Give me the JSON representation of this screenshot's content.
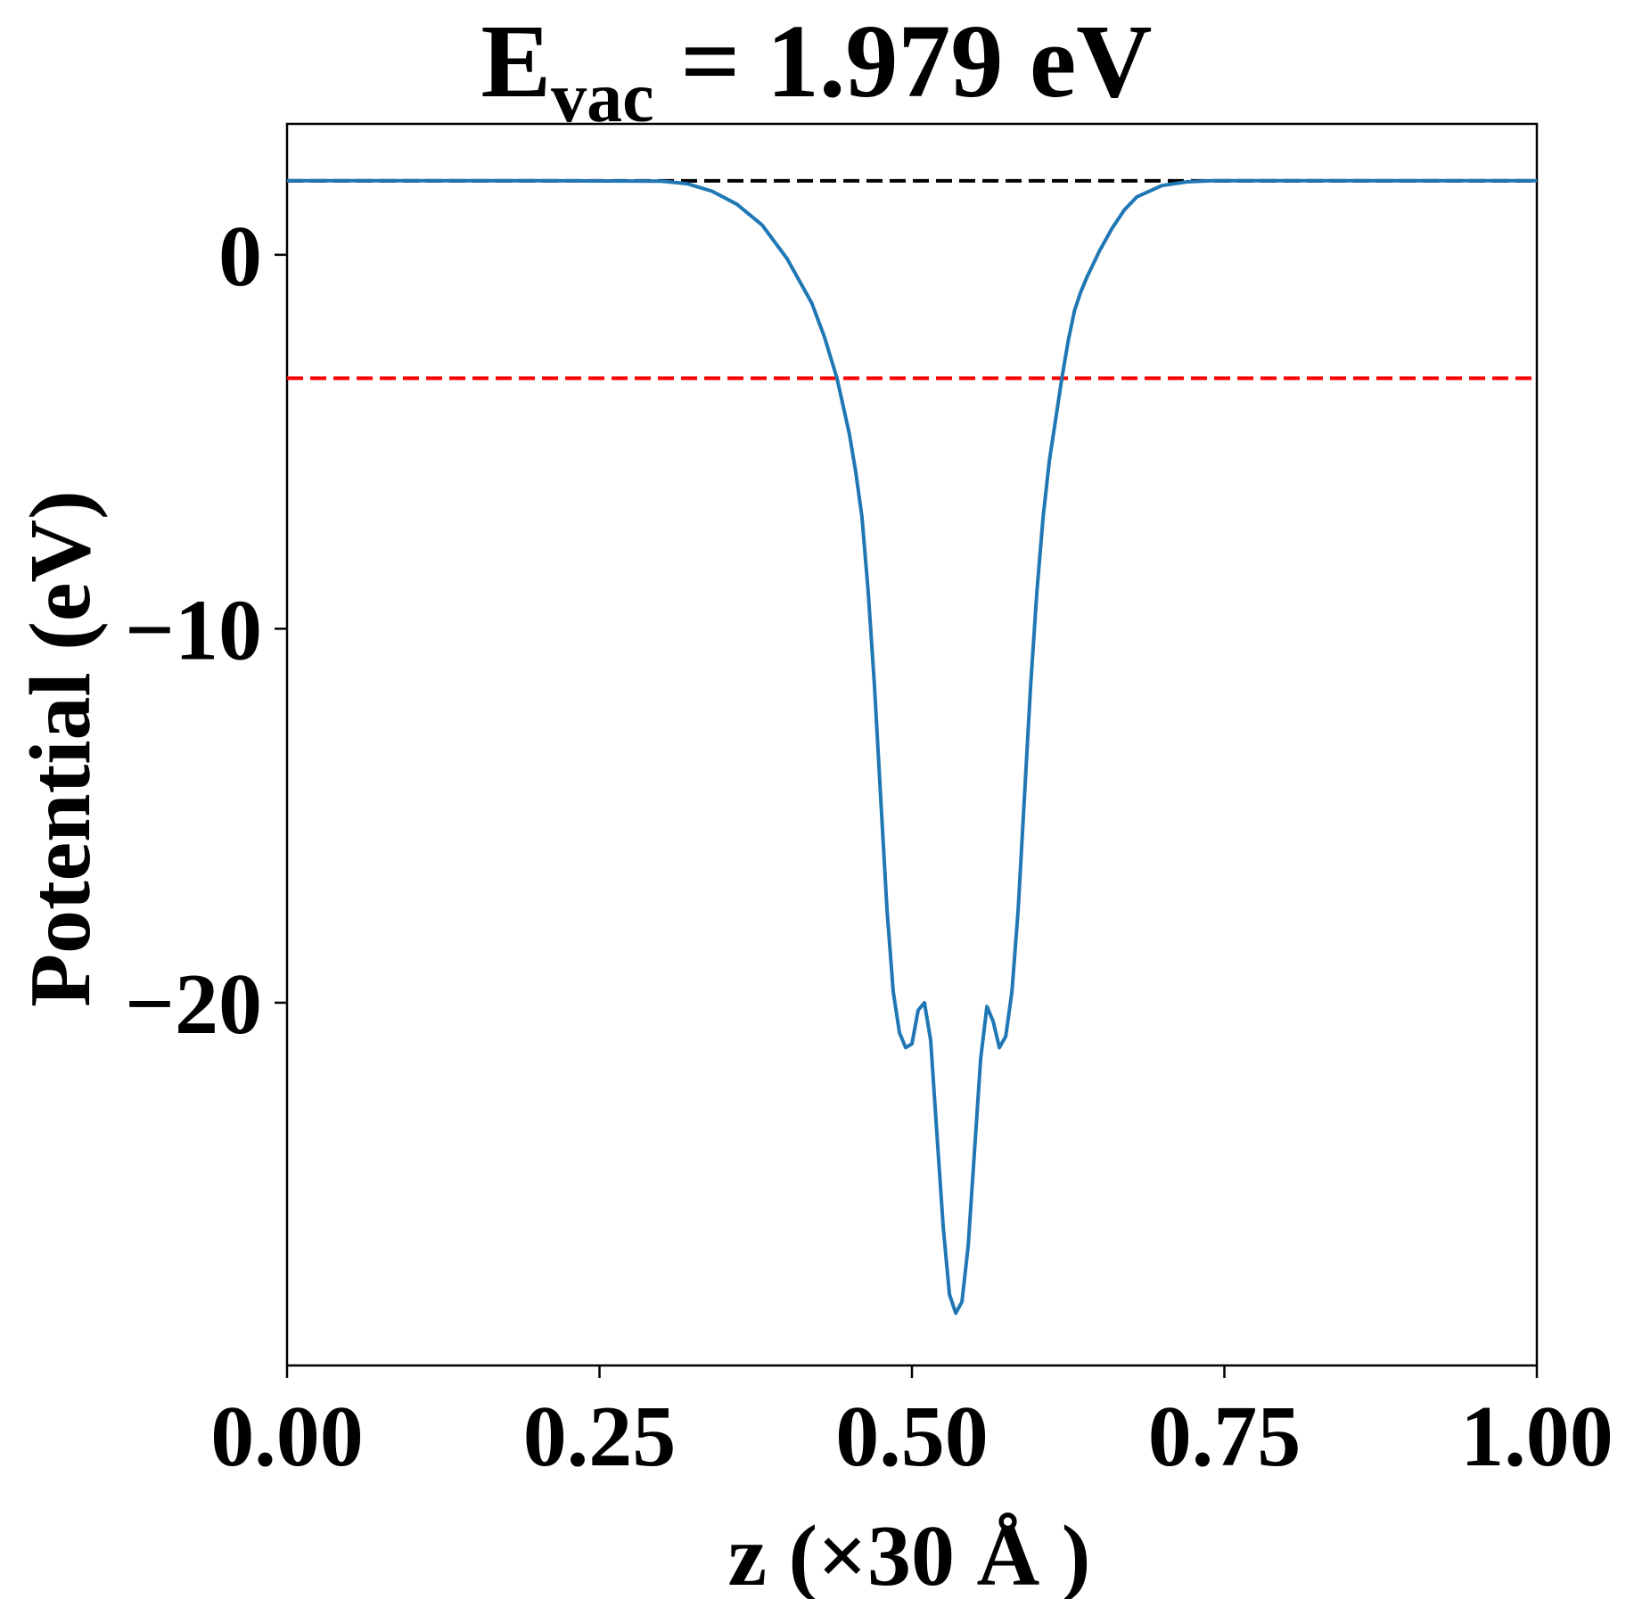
{
  "chart_data": {
    "type": "line",
    "title": {
      "prefix": "E",
      "subscript": "vac",
      "suffix": " = 1.979 eV"
    },
    "xlabel": "z (×30 Å )",
    "ylabel": "Potential (eV)",
    "xlim": [
      0.0,
      1.0
    ],
    "ylim": [
      -29.7,
      3.5
    ],
    "xticks": [
      0.0,
      0.25,
      0.5,
      0.75,
      1.0
    ],
    "xtick_labels": [
      "0.00",
      "0.25",
      "0.50",
      "0.75",
      "1.00"
    ],
    "yticks": [
      0,
      -10,
      -20
    ],
    "ytick_labels": [
      "0",
      "−10",
      "−20"
    ],
    "grid": false,
    "reference_lines": [
      {
        "y": 1.979,
        "color": "#000000",
        "style": "dashed"
      },
      {
        "y": -3.3,
        "color": "#ff0000",
        "style": "dashed"
      }
    ],
    "series": [
      {
        "color": "#1f77b4",
        "x": [
          0.0,
          0.1,
          0.2,
          0.3,
          0.32,
          0.34,
          0.36,
          0.38,
          0.4,
          0.42,
          0.43,
          0.44,
          0.45,
          0.455,
          0.46,
          0.465,
          0.47,
          0.475,
          0.48,
          0.485,
          0.49,
          0.495,
          0.5,
          0.505,
          0.51,
          0.515,
          0.52,
          0.525,
          0.53,
          0.535,
          0.54,
          0.545,
          0.55,
          0.555,
          0.56,
          0.565,
          0.57,
          0.575,
          0.58,
          0.585,
          0.59,
          0.595,
          0.6,
          0.605,
          0.61,
          0.615,
          0.62,
          0.625,
          0.63,
          0.635,
          0.64,
          0.65,
          0.66,
          0.67,
          0.68,
          0.7,
          0.72,
          0.74,
          0.76,
          0.78,
          0.8,
          0.82,
          0.9,
          1.0
        ],
        "y": [
          1.98,
          1.98,
          1.98,
          1.97,
          1.9,
          1.7,
          1.35,
          0.8,
          -0.1,
          -1.3,
          -2.2,
          -3.3,
          -4.8,
          -5.8,
          -7.0,
          -9.0,
          -11.5,
          -14.5,
          -17.5,
          -19.7,
          -20.8,
          -21.2,
          -21.1,
          -20.2,
          -20.0,
          -21.0,
          -23.5,
          -26.0,
          -27.8,
          -28.3,
          -28.0,
          -26.5,
          -24.0,
          -21.5,
          -20.1,
          -20.5,
          -21.2,
          -20.9,
          -19.7,
          -17.5,
          -14.5,
          -11.5,
          -9.0,
          -7.0,
          -5.5,
          -4.4,
          -3.3,
          -2.3,
          -1.5,
          -1.0,
          -0.6,
          0.1,
          0.7,
          1.2,
          1.55,
          1.85,
          1.95,
          1.98,
          1.98,
          1.98,
          1.98,
          1.98,
          1.98,
          1.98
        ]
      }
    ]
  }
}
